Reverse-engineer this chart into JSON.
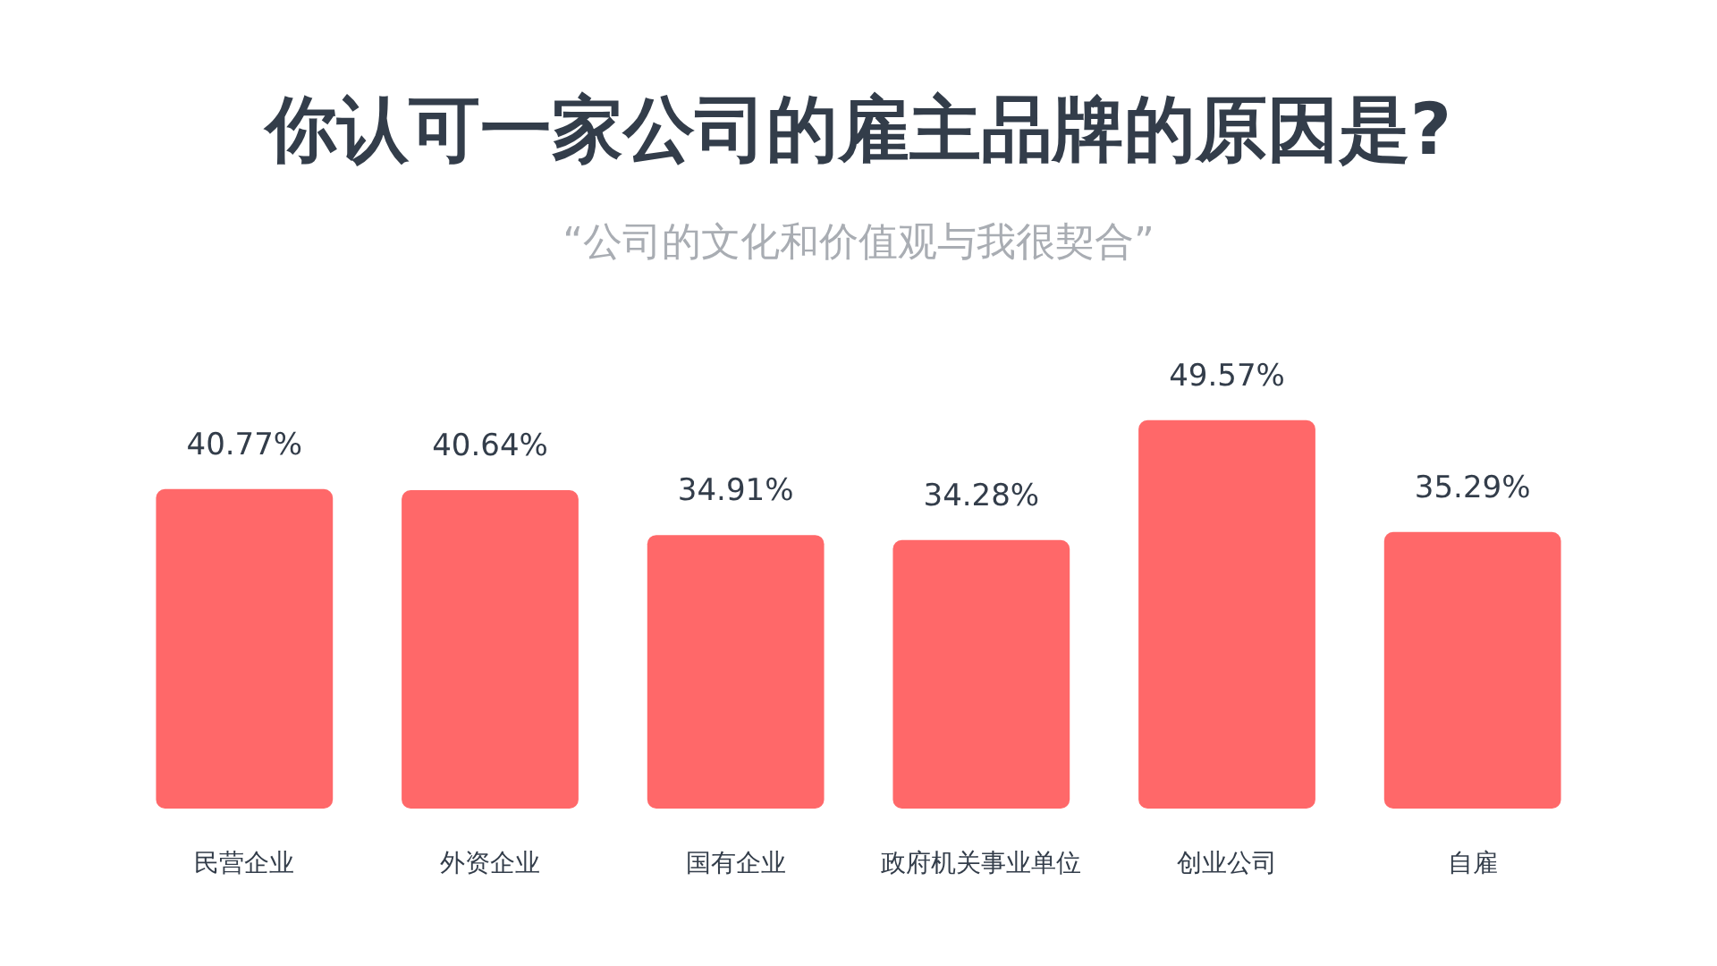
{
  "chart_data": {
    "type": "bar",
    "title": "你认可一家公司的雇主品牌的原因是?",
    "subtitle": "“公司的文化和价值观与我很契合”",
    "categories": [
      "民营企业",
      "外资企业",
      "国有企业",
      "政府机关事业单位",
      "创业公司",
      "自雇"
    ],
    "values": [
      40.77,
      40.64,
      34.91,
      34.28,
      49.57,
      35.29
    ],
    "value_labels": [
      "40.77%",
      "40.64%",
      "34.91%",
      "34.28%",
      "49.57%",
      "35.29%"
    ],
    "color": "#ff6869"
  }
}
